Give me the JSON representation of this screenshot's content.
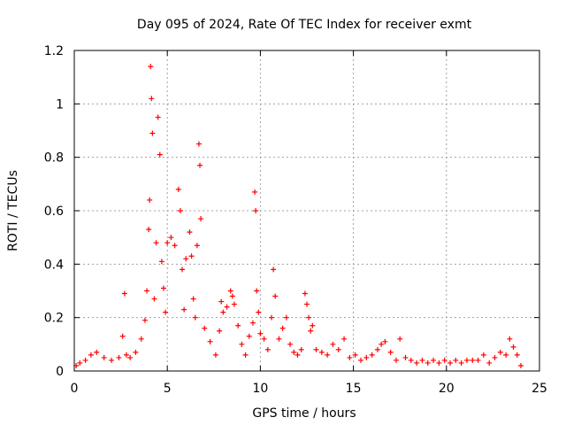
{
  "chart_data": {
    "type": "scatter",
    "title": "Day 095 of 2024, Rate Of TEC Index for receiver exmt",
    "xlabel": "GPS time / hours",
    "ylabel": "ROTI / TECUs",
    "xlim": [
      0,
      25
    ],
    "ylim": [
      0,
      1.2
    ],
    "x_ticks": [
      0,
      5,
      10,
      15,
      20,
      25
    ],
    "x_tick_labels": [
      "0",
      "5",
      "10",
      "15",
      "20",
      "25"
    ],
    "y_ticks": [
      0,
      0.2,
      0.4,
      0.6,
      0.8,
      1.0,
      1.2
    ],
    "y_tick_labels": [
      "0",
      "0.2",
      "0.4",
      "0.6",
      "0.8",
      "1",
      "1.2"
    ],
    "grid": true,
    "marker": "+",
    "color": "#ff0000",
    "series": [
      {
        "name": "ROTI",
        "x": [
          0.1,
          0.3,
          0.6,
          0.9,
          1.2,
          1.6,
          2.0,
          2.4,
          2.6,
          2.7,
          2.8,
          3.0,
          3.3,
          3.6,
          3.8,
          3.9,
          4.0,
          4.05,
          4.1,
          4.15,
          4.2,
          4.3,
          4.4,
          4.5,
          4.6,
          4.7,
          4.8,
          4.9,
          5.0,
          5.2,
          5.4,
          5.6,
          5.7,
          5.8,
          5.9,
          6.0,
          6.2,
          6.3,
          6.4,
          6.5,
          6.6,
          6.7,
          6.75,
          6.8,
          7.0,
          7.3,
          7.6,
          7.8,
          7.9,
          8.0,
          8.2,
          8.4,
          8.5,
          8.6,
          8.8,
          9.0,
          9.2,
          9.4,
          9.6,
          9.7,
          9.75,
          9.8,
          9.9,
          10.0,
          10.2,
          10.4,
          10.6,
          10.7,
          10.8,
          11.0,
          11.2,
          11.4,
          11.6,
          11.8,
          12.0,
          12.2,
          12.4,
          12.5,
          12.6,
          12.7,
          12.8,
          13.0,
          13.3,
          13.6,
          13.9,
          14.2,
          14.5,
          14.8,
          15.1,
          15.4,
          15.7,
          16.0,
          16.3,
          16.5,
          16.7,
          17.0,
          17.3,
          17.5,
          17.8,
          18.1,
          18.4,
          18.7,
          19.0,
          19.3,
          19.6,
          19.9,
          20.2,
          20.5,
          20.8,
          21.1,
          21.4,
          21.7,
          22.0,
          22.3,
          22.6,
          22.9,
          23.2,
          23.4,
          23.6,
          23.8,
          24.0
        ],
        "y": [
          0.02,
          0.03,
          0.04,
          0.06,
          0.07,
          0.05,
          0.04,
          0.05,
          0.13,
          0.29,
          0.06,
          0.05,
          0.07,
          0.12,
          0.19,
          0.3,
          0.53,
          0.64,
          1.14,
          1.02,
          0.89,
          0.27,
          0.48,
          0.95,
          0.81,
          0.41,
          0.31,
          0.22,
          0.48,
          0.5,
          0.47,
          0.68,
          0.6,
          0.38,
          0.23,
          0.42,
          0.52,
          0.43,
          0.27,
          0.2,
          0.47,
          0.85,
          0.77,
          0.57,
          0.16,
          0.11,
          0.06,
          0.15,
          0.26,
          0.22,
          0.24,
          0.3,
          0.28,
          0.25,
          0.17,
          0.1,
          0.06,
          0.13,
          0.18,
          0.67,
          0.6,
          0.3,
          0.22,
          0.14,
          0.12,
          0.08,
          0.2,
          0.38,
          0.28,
          0.12,
          0.16,
          0.2,
          0.1,
          0.07,
          0.06,
          0.08,
          0.29,
          0.25,
          0.2,
          0.15,
          0.17,
          0.08,
          0.07,
          0.06,
          0.1,
          0.08,
          0.12,
          0.05,
          0.06,
          0.04,
          0.05,
          0.06,
          0.08,
          0.1,
          0.11,
          0.07,
          0.04,
          0.12,
          0.05,
          0.04,
          0.03,
          0.04,
          0.03,
          0.04,
          0.03,
          0.04,
          0.03,
          0.04,
          0.03,
          0.04,
          0.04,
          0.04,
          0.06,
          0.03,
          0.05,
          0.07,
          0.06,
          0.12,
          0.09,
          0.06,
          0.02
        ]
      }
    ]
  }
}
